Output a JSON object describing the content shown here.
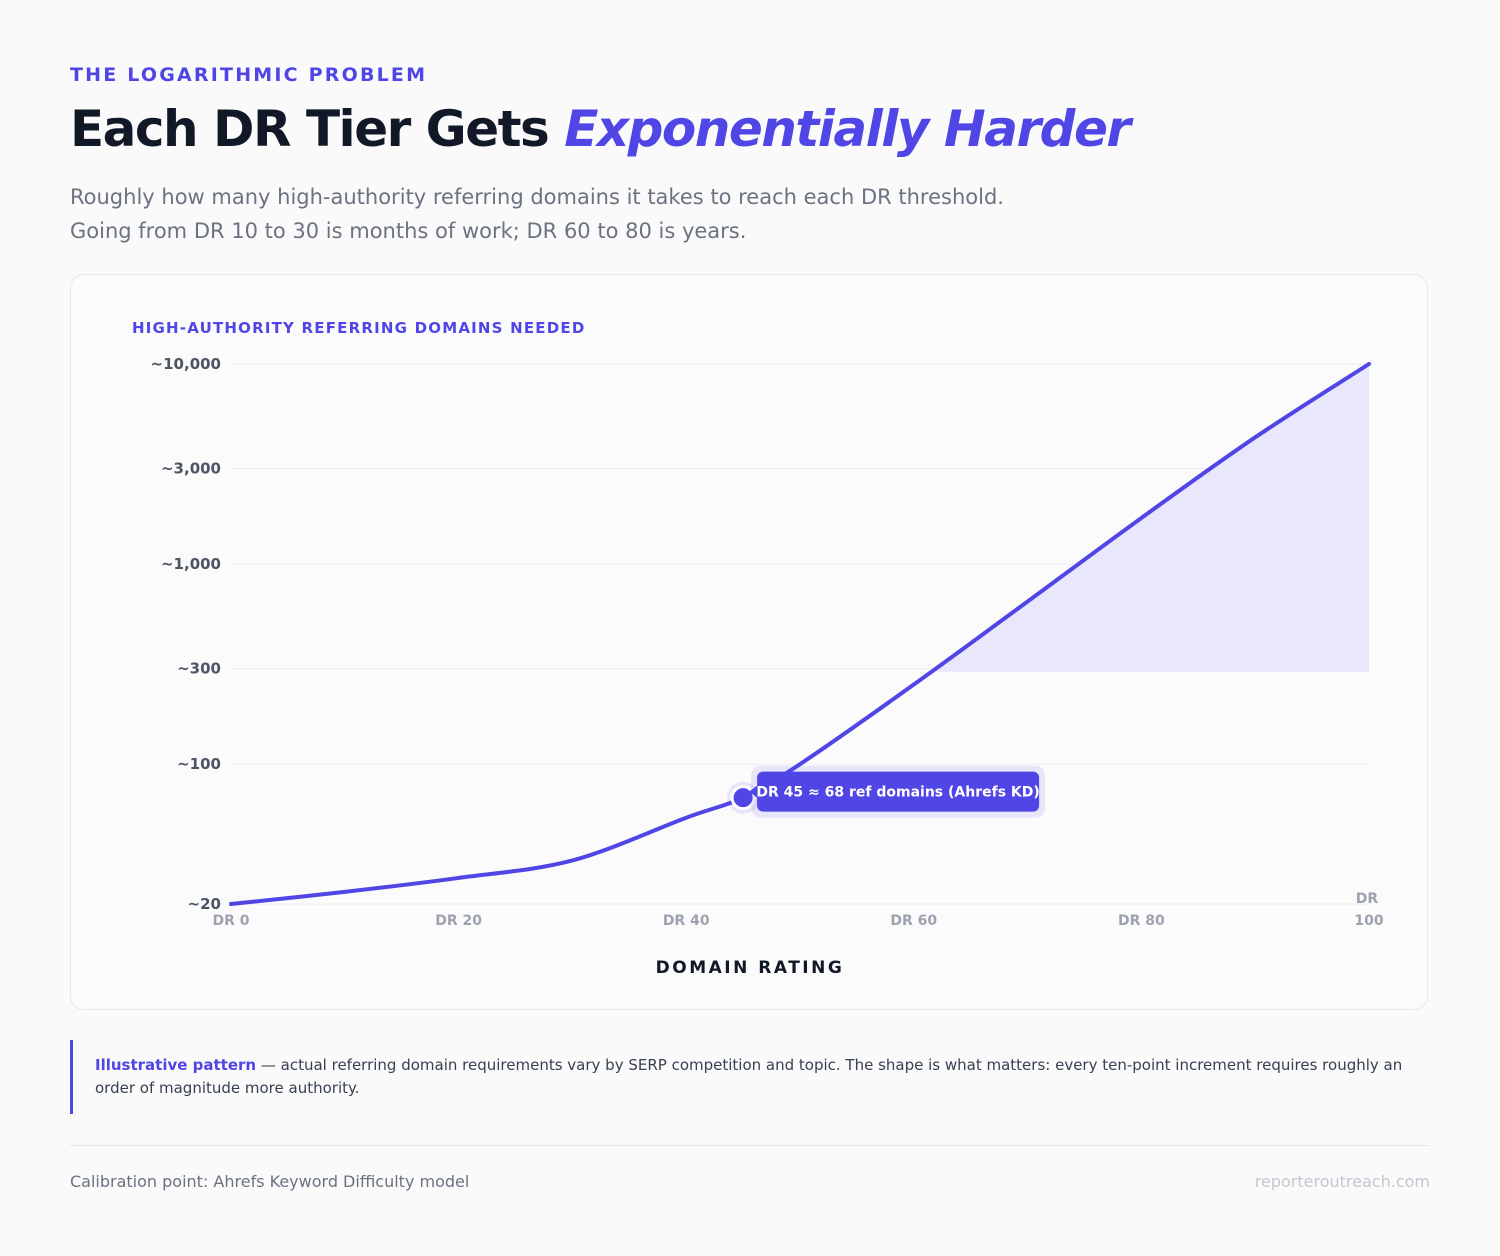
{
  "header": {
    "eyebrow": "THE LOGARITHMIC PROBLEM",
    "title_main": "Each DR Tier Gets ",
    "title_accent": "Exponentially Harder",
    "subtitle_line1": "Roughly how many high-authority referring domains it takes to reach each DR threshold.",
    "subtitle_line2": "Going from DR 10 to 30 is months of work; DR 60 to 80 is years."
  },
  "chart_data": {
    "type": "line",
    "ylabel": "HIGH-AUTHORITY REFERRING DOMAINS NEEDED",
    "xlabel": "DOMAIN RATING",
    "y_scale": "log",
    "ylim": [
      20,
      10000
    ],
    "xlim": [
      0,
      100
    ],
    "y_ticks": [
      {
        "value": 10000,
        "label": "~10,000"
      },
      {
        "value": 3000,
        "label": "~3,000"
      },
      {
        "value": 1000,
        "label": "~1,000"
      },
      {
        "value": 300,
        "label": "~300"
      },
      {
        "value": 100,
        "label": "~100"
      },
      {
        "value": 20,
        "label": "~20"
      }
    ],
    "x_ticks": [
      {
        "value": 0,
        "label": "DR 0"
      },
      {
        "value": 20,
        "label": "DR 20"
      },
      {
        "value": 40,
        "label": "DR 40"
      },
      {
        "value": 60,
        "label": "DR 60"
      },
      {
        "value": 80,
        "label": "DR 80"
      },
      {
        "value": 100,
        "label": "DR 100"
      }
    ],
    "series": [
      {
        "x": [
          0,
          10,
          20,
          30,
          40,
          45,
          50,
          60,
          70,
          80,
          90,
          100
        ],
        "y": [
          20,
          23,
          27,
          33,
          54,
          68,
          100,
          250,
          650,
          1700,
          4300,
          10000
        ]
      }
    ],
    "shaded_region": {
      "x_from": 62,
      "x_to": 100,
      "y_floor": 300
    },
    "highlight": {
      "x": 45,
      "y": 68,
      "label": "DR 45 ≈ 68 ref domains (Ahrefs KD)"
    },
    "grid": "horizontal",
    "colors": {
      "line": "#4f46e5",
      "fill": "#e8e6fb",
      "grid": "#ececf1"
    }
  },
  "note": {
    "strong": "Illustrative pattern",
    "text": " — actual referring domain requirements vary by SERP competition and topic. The shape is what matters: every ten-point increment requires roughly an order of magnitude more authority."
  },
  "footer": {
    "left": "Calibration point: Ahrefs Keyword Difficulty model",
    "right": "reporteroutreach.com"
  }
}
